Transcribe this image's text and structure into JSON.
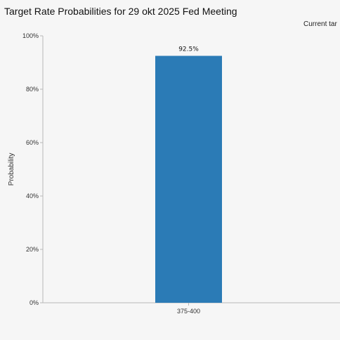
{
  "header": {
    "title": "Target Rate Probabilities for 29 okt 2025 Fed Meeting",
    "current_target_partial": "Current tar"
  },
  "chart_data": {
    "type": "bar",
    "title": "Target Rate Probabilities for 29 okt 2025 Fed Meeting",
    "xlabel": "",
    "ylabel": "Probability",
    "categories": [
      "375-400"
    ],
    "values": [
      92.5
    ],
    "data_labels": [
      "92.5%"
    ],
    "ylim": [
      0,
      100
    ],
    "yticks": [
      {
        "value": 0,
        "label": "0%"
      },
      {
        "value": 20,
        "label": "20%"
      },
      {
        "value": 40,
        "label": "40%"
      },
      {
        "value": 60,
        "label": "60%"
      },
      {
        "value": 80,
        "label": "80%"
      },
      {
        "value": 100,
        "label": "100%"
      }
    ],
    "bar_color": "#2b7bb6",
    "grid": false,
    "legend": "none"
  }
}
